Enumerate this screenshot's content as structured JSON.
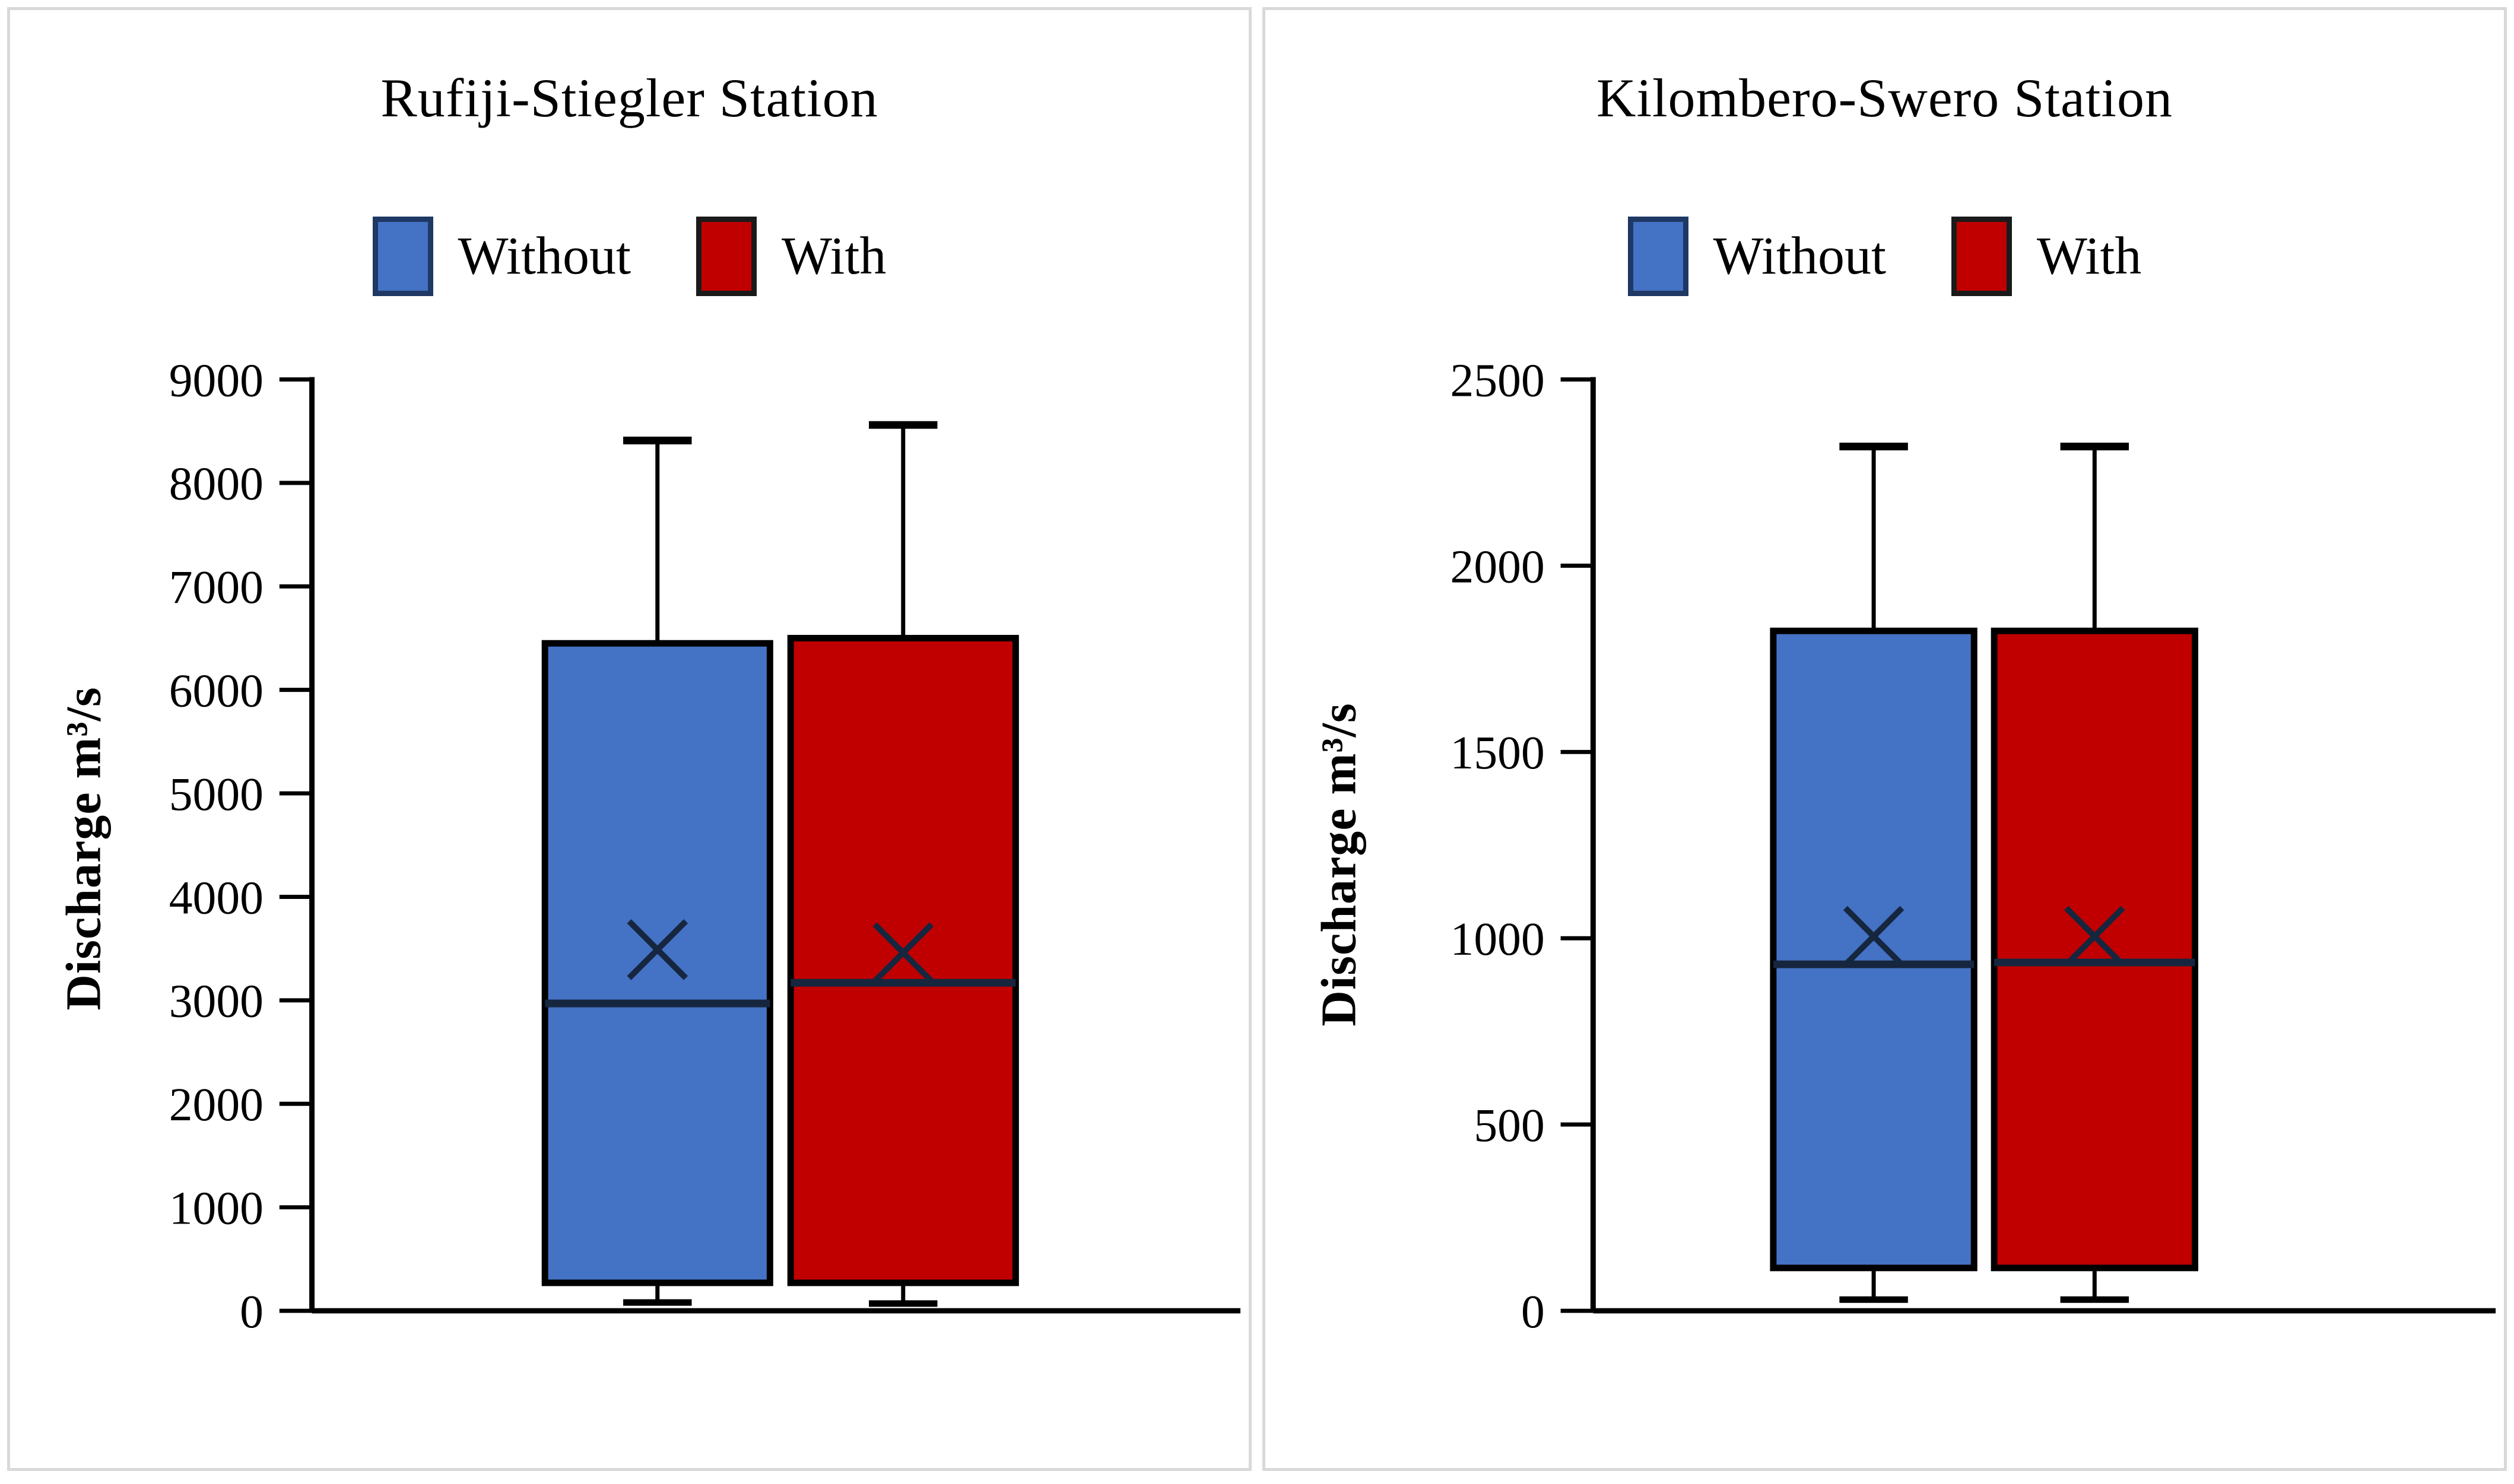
{
  "figure": {
    "background": "#FFFFFF",
    "panel_border": "#D9D9D9"
  },
  "style": {
    "axis_color": "#000000",
    "whisker_color": "#000000",
    "box_edge_color": "#000000",
    "median_color": "#16263F",
    "mean_marker_color": "#16263F",
    "text_color": "#000000",
    "mean_marker": "x"
  },
  "chart_data": [
    {
      "type": "boxplot",
      "title": "Rufiji-Stiegler Station",
      "ylabel": "Discharge m³/s",
      "xlabel": "",
      "grid": false,
      "legend_position": "top",
      "axis": {
        "min": 0,
        "max": 9000,
        "step": 1000
      },
      "legend": [
        {
          "label": "Without",
          "fill": "#4472C4",
          "border": "#1F3864"
        },
        {
          "label": "With",
          "fill": "#C00000",
          "border": "#1A1A1A"
        }
      ],
      "series": [
        {
          "name": "Without",
          "fill": "#4472C4",
          "stats": {
            "whisker_min": 80,
            "q1": 270,
            "median": 2970,
            "mean": 3490,
            "q3": 6450,
            "whisker_max": 8410
          }
        },
        {
          "name": "With",
          "fill": "#C00000",
          "stats": {
            "whisker_min": 70,
            "q1": 270,
            "median": 3170,
            "mean": 3460,
            "q3": 6500,
            "whisker_max": 8560
          }
        }
      ]
    },
    {
      "type": "boxplot",
      "title": "Kilombero-Swero Station",
      "ylabel": "Discharge m³/s",
      "xlabel": "",
      "grid": false,
      "legend_position": "top",
      "axis": {
        "min": 0,
        "max": 2500,
        "step": 500
      },
      "legend": [
        {
          "label": "Without",
          "fill": "#4472C4",
          "border": "#1F3864"
        },
        {
          "label": "With",
          "fill": "#C00000",
          "border": "#1A1A1A"
        }
      ],
      "series": [
        {
          "name": "Without",
          "fill": "#4472C4",
          "stats": {
            "whisker_min": 30,
            "q1": 115,
            "median": 930,
            "mean": 1005,
            "q3": 1825,
            "whisker_max": 2320
          }
        },
        {
          "name": "With",
          "fill": "#C00000",
          "stats": {
            "whisker_min": 30,
            "q1": 115,
            "median": 935,
            "mean": 1005,
            "q3": 1825,
            "whisker_max": 2320
          }
        }
      ]
    }
  ]
}
